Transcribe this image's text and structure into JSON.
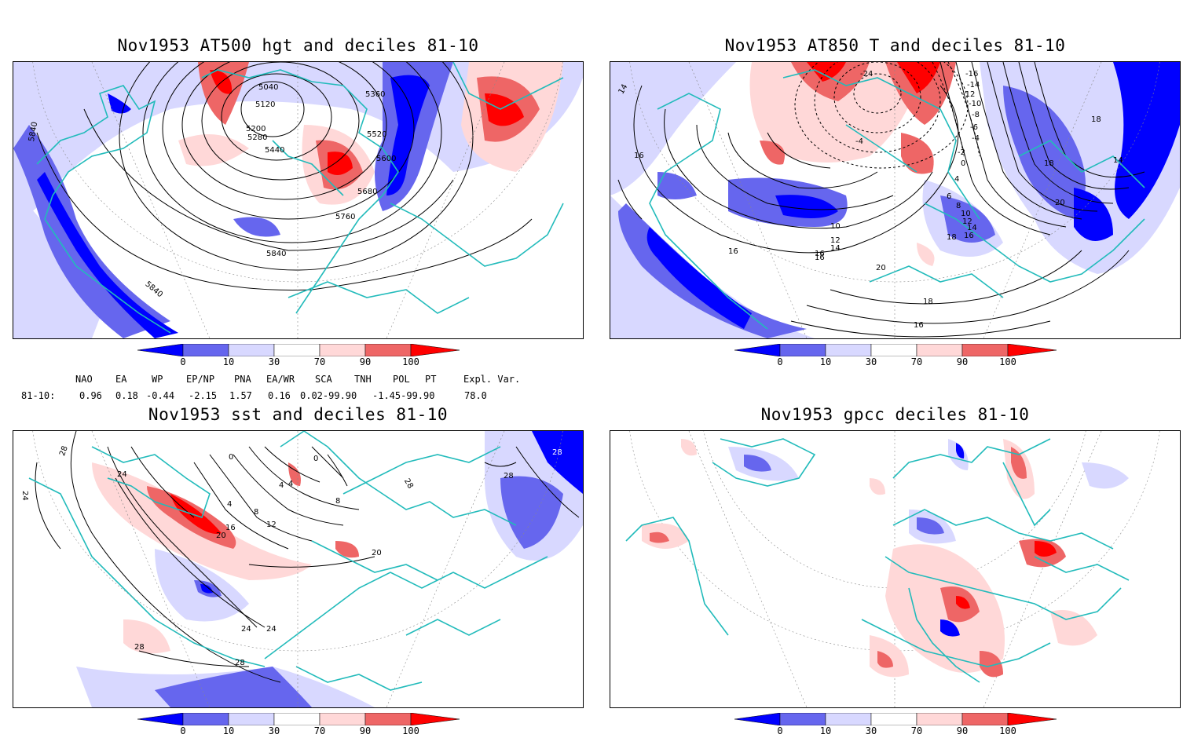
{
  "panels": {
    "p1": {
      "title": "Nov1953 AT500 hgt and deciles 81-10",
      "contour_labels": [
        "5040",
        "5120",
        "5200",
        "5280",
        "5360",
        "5440",
        "5520",
        "5600",
        "5680",
        "5760",
        "5840",
        "5840",
        "5840"
      ]
    },
    "p2": {
      "title": "Nov1953 AT850 T and deciles 81-10",
      "contour_labels": [
        "14",
        "16",
        "16",
        "18",
        "16",
        "18",
        "20",
        "14",
        "-24",
        "-16",
        "-14",
        "-12",
        "-10",
        "-8",
        "-6",
        "-4",
        "-2",
        "0",
        "4",
        "6",
        "8",
        "10",
        "12",
        "14",
        "16",
        "18",
        "20",
        "18",
        "16",
        "12",
        "10",
        "16",
        "14",
        "-4"
      ]
    },
    "p3": {
      "title": "Nov1953 sst and deciles 81-10",
      "contour_labels": [
        "28",
        "24",
        "24",
        "0",
        "0",
        "4",
        "4",
        "8",
        "12",
        "16",
        "20",
        "20",
        "24",
        "28",
        "28",
        "28",
        "4",
        "8",
        "28"
      ]
    },
    "p4": {
      "title": "Nov1953 gpcc deciles 81-10"
    }
  },
  "colorbar": {
    "labels": [
      "0",
      "10",
      "30",
      "70",
      "90",
      "100"
    ],
    "colors": [
      "#0000ff",
      "#6666ee",
      "#d8d8ff",
      "#ffffff",
      "#ffd8d8",
      "#ee6666",
      "#ff0000"
    ]
  },
  "indices": {
    "header": [
      "NAO",
      "EA",
      "WP",
      "EP/NP",
      "PNA",
      "EA/WR",
      "SCA",
      "TNH",
      "POL",
      "PT",
      "Expl. Var."
    ],
    "row_label": "81-10:",
    "values": [
      "0.96",
      "0.18",
      "-0.44",
      "-2.15",
      "1.57",
      "0.16",
      "0.02-99.90",
      "-1.45-99.90",
      "78.0"
    ]
  },
  "map_colors": {
    "coast": "#22bbbb",
    "grid": "#888888"
  }
}
